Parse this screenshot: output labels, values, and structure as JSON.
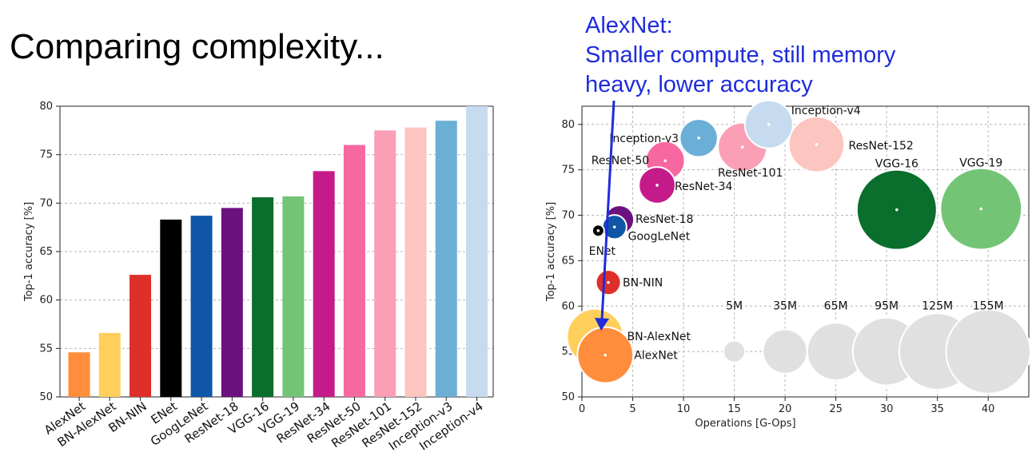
{
  "slide": {
    "title": "Comparing complexity...",
    "annotation": [
      "AlexNet:",
      "Smaller compute, still memory",
      "heavy, lower accuracy"
    ],
    "annotation_color": "#1f2cdc"
  },
  "chart_data": [
    {
      "type": "bar",
      "ylabel": "Top-1 accuracy [%]",
      "ylim": [
        50,
        80
      ],
      "yticks": [
        50,
        55,
        60,
        65,
        70,
        75,
        80
      ],
      "grid": true,
      "categories": [
        "AlexNet",
        "BN-AlexNet",
        "BN-NIN",
        "ENet",
        "GoogLeNet",
        "ResNet-18",
        "VGG-16",
        "VGG-19",
        "ResNet-34",
        "ResNet-50",
        "ResNet-101",
        "ResNet-152",
        "Inception-v3",
        "Inception-v4"
      ],
      "values": [
        54.6,
        56.6,
        62.6,
        68.3,
        68.7,
        69.5,
        70.6,
        70.7,
        73.3,
        76.0,
        77.5,
        77.8,
        78.5,
        80.0
      ],
      "colors": [
        "#ff8d3b",
        "#ffcf5c",
        "#df2f2a",
        "#000000",
        "#0f57a6",
        "#6c1180",
        "#0a6e2c",
        "#74c476",
        "#c51b8a",
        "#f768a1",
        "#fa9fb5",
        "#fcc5c0",
        "#6baed6",
        "#c6dbef"
      ]
    },
    {
      "type": "scatter",
      "xlabel": "Operations [G-Ops]",
      "ylabel": "Top-1 accuracy [%]",
      "xlim": [
        0,
        44
      ],
      "ylim": [
        50,
        82
      ],
      "xticks": [
        0,
        5,
        10,
        15,
        20,
        25,
        30,
        35,
        40
      ],
      "yticks": [
        50,
        55,
        60,
        65,
        70,
        75,
        80
      ],
      "grid": true,
      "points": [
        {
          "name": "AlexNet",
          "x": 2.3,
          "y": 54.6,
          "params_M": 61,
          "color": "#ff8d3b"
        },
        {
          "name": "BN-AlexNet",
          "x": 1.3,
          "y": 56.6,
          "params_M": 62,
          "color": "#ffcf5c"
        },
        {
          "name": "BN-NIN",
          "x": 2.6,
          "y": 62.6,
          "params_M": 7.6,
          "color": "#df2f2a"
        },
        {
          "name": "ENet",
          "x": 1.6,
          "y": 68.3,
          "params_M": 0.4,
          "color": "#000000"
        },
        {
          "name": "GoogLeNet",
          "x": 3.2,
          "y": 68.7,
          "params_M": 7,
          "color": "#0f57a6"
        },
        {
          "name": "ResNet-18",
          "x": 3.7,
          "y": 69.5,
          "params_M": 11.7,
          "color": "#6c1180"
        },
        {
          "name": "ResNet-34",
          "x": 7.4,
          "y": 73.3,
          "params_M": 21.8,
          "color": "#c51b8a"
        },
        {
          "name": "ResNet-50",
          "x": 8.2,
          "y": 76.0,
          "params_M": 25.5,
          "color": "#f768a1"
        },
        {
          "name": "Inception-v3",
          "x": 11.5,
          "y": 78.5,
          "params_M": 23.8,
          "color": "#6baed6"
        },
        {
          "name": "ResNet-101",
          "x": 15.8,
          "y": 77.5,
          "params_M": 44.5,
          "color": "#fa9fb5"
        },
        {
          "name": "Inception-v4",
          "x": 18.4,
          "y": 80.0,
          "params_M": 42.7,
          "color": "#c6dbef"
        },
        {
          "name": "ResNet-152",
          "x": 23.1,
          "y": 77.8,
          "params_M": 60.2,
          "color": "#fcc5c0"
        },
        {
          "name": "VGG-16",
          "x": 31.0,
          "y": 70.6,
          "params_M": 138,
          "color": "#0a6e2c"
        },
        {
          "name": "VGG-19",
          "x": 39.3,
          "y": 70.7,
          "params_M": 144,
          "color": "#74c476"
        }
      ],
      "size_legend": {
        "labels": [
          "5M",
          "35M",
          "65M",
          "95M",
          "125M",
          "155M"
        ],
        "x": [
          15,
          20,
          25,
          30,
          35,
          40
        ],
        "y": 55,
        "params_M": [
          5,
          35,
          65,
          95,
          125,
          155
        ],
        "color": "#e0e0e0"
      }
    }
  ]
}
